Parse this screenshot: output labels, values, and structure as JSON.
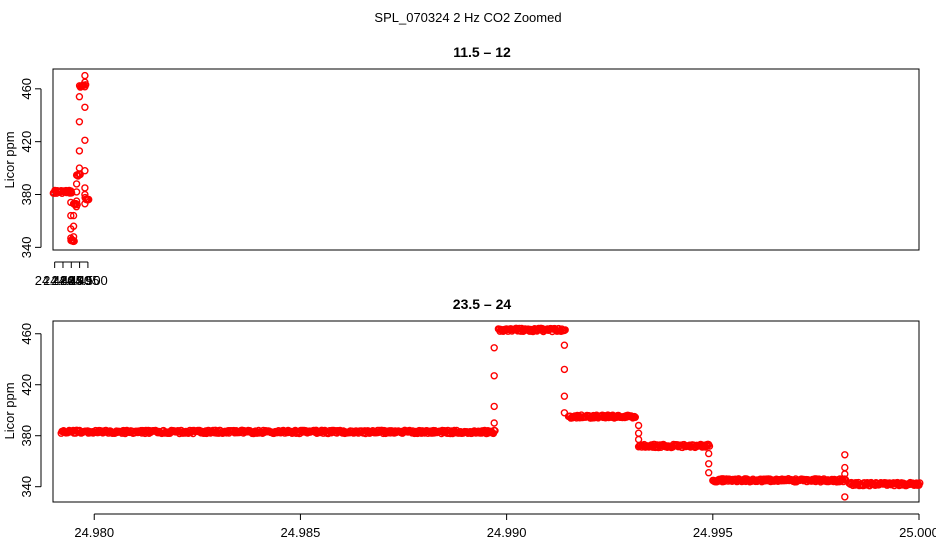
{
  "figure": {
    "title": "SPL_070324  2 Hz CO2 Zoomed"
  },
  "colors": {
    "points": "#ff0000",
    "axes": "#000000",
    "background": "#ffffff"
  },
  "chart_data": [
    {
      "type": "scatter",
      "title": "11.5 – 12",
      "xlabel": "",
      "ylabel": "Licor ppm",
      "xlim": [
        24.479,
        25.0
      ],
      "ylim": [
        338,
        475
      ],
      "x_ticks": [
        "24.480",
        "24.485",
        "24.490",
        "24.495",
        "24.500"
      ],
      "y_ticks": [
        "340",
        "380",
        "420",
        "460"
      ],
      "grid": false,
      "marker": "open-circle",
      "segments": [
        {
          "x_start": 24.4792,
          "x_end": 24.4897,
          "y": 382
        },
        {
          "x_start": 24.4898,
          "x_end": 24.4913,
          "y": 345
        },
        {
          "x_start": 24.4914,
          "x_end": 24.4931,
          "y": 372
        },
        {
          "x_start": 24.4932,
          "x_end": 24.4949,
          "y": 395
        },
        {
          "x_start": 24.495,
          "x_end": 24.4982,
          "y": 462
        },
        {
          "x_start": 24.4983,
          "x_end": 24.5,
          "y": 377
        }
      ],
      "transitions": [
        {
          "x": 24.4897,
          "y": [
            382,
            374,
            364,
            354,
            347
          ]
        },
        {
          "x": 24.4914,
          "y": [
            348,
            356,
            364
          ]
        },
        {
          "x": 24.4932,
          "y": [
            375,
            382,
            388
          ]
        },
        {
          "x": 24.4949,
          "y": [
            400,
            413,
            435,
            454
          ]
        },
        {
          "x": 24.4982,
          "y": [
            470,
            465,
            446,
            421,
            398,
            385,
            380,
            373
          ]
        }
      ]
    },
    {
      "type": "scatter",
      "title": "23.5 – 24",
      "xlabel": "",
      "ylabel": "Licor ppm",
      "xlim": [
        24.979,
        25.0
      ],
      "ylim": [
        328,
        470
      ],
      "x_ticks": [
        "24.980",
        "24.985",
        "24.990",
        "24.995",
        "25.000"
      ],
      "y_ticks": [
        "340",
        "380",
        "420",
        "460"
      ],
      "grid": false,
      "marker": "open-circle",
      "segments": [
        {
          "x_start": 24.9792,
          "x_end": 24.9897,
          "y": 383
        },
        {
          "x_start": 24.9898,
          "x_end": 24.9914,
          "y": 463
        },
        {
          "x_start": 24.9915,
          "x_end": 24.9931,
          "y": 395
        },
        {
          "x_start": 24.9932,
          "x_end": 24.9949,
          "y": 372
        },
        {
          "x_start": 24.995,
          "x_end": 24.9982,
          "y": 345
        },
        {
          "x_start": 24.9983,
          "x_end": 25.0,
          "y": 342
        }
      ],
      "transitions": [
        {
          "x": 24.9897,
          "y": [
            390,
            403,
            427,
            449
          ]
        },
        {
          "x": 24.9914,
          "y": [
            451,
            432,
            411,
            398
          ]
        },
        {
          "x": 24.9932,
          "y": [
            388,
            382,
            377
          ]
        },
        {
          "x": 24.9949,
          "y": [
            366,
            358,
            351
          ]
        },
        {
          "x": 24.9982,
          "y": [
            365,
            355,
            350,
            332
          ]
        }
      ]
    }
  ]
}
